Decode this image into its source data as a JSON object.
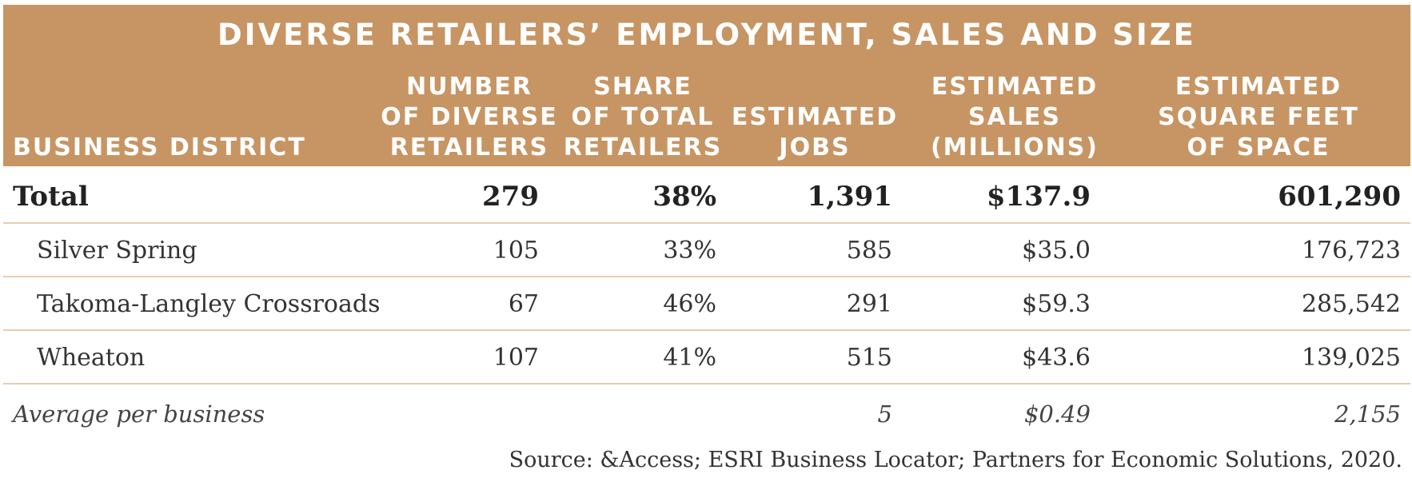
{
  "table": {
    "title": "DIVERSE RETAILERS’ EMPLOYMENT, SALES AND SIZE",
    "headers": {
      "district": "BUSINESS DISTRICT",
      "number_l1": "NUMBER",
      "number_l2": "OF DIVERSE",
      "number_l3": "RETAILERS",
      "share_l1": "SHARE",
      "share_l2": "OF TOTAL",
      "share_l3": "RETAILERS",
      "jobs_l1": "ESTIMATED",
      "jobs_l2": "JOBS",
      "sales_l1": "ESTIMATED",
      "sales_l2": "SALES",
      "sales_l3": "(MILLIONS)",
      "space_l1": "ESTIMATED",
      "space_l2": "SQUARE FEET",
      "space_l3": "OF SPACE"
    },
    "rows": [
      {
        "district": "Total",
        "number": "279",
        "share": "38%",
        "jobs": "1,391",
        "sales": "$137.9",
        "space": "601,290"
      },
      {
        "district": "Silver Spring",
        "number": "105",
        "share": "33%",
        "jobs": "585",
        "sales": "$35.0",
        "space": "176,723"
      },
      {
        "district": "Takoma-Langley Crossroads",
        "number": "67",
        "share": "46%",
        "jobs": "291",
        "sales": "$59.3",
        "space": "285,542"
      },
      {
        "district": "Wheaton",
        "number": "107",
        "share": "41%",
        "jobs": "515",
        "sales": "$43.6",
        "space": "139,025"
      }
    ],
    "average": {
      "label": "Average per business",
      "jobs": "5",
      "sales": "$0.49",
      "space": "2,155"
    },
    "source": "Source: &Access; ESRI Business Locator; Partners for Economic Solutions, 2020."
  },
  "colors": {
    "header_bg": "#c79563",
    "divider": "#e6cdb2"
  }
}
